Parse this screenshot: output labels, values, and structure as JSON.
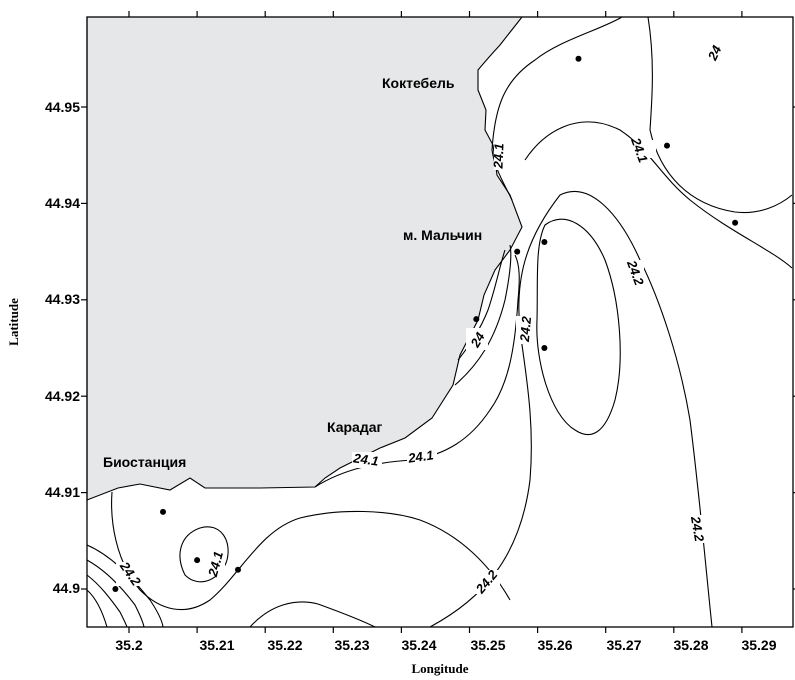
{
  "figure": {
    "xlabel": "Longitude",
    "ylabel": "Latitude",
    "x_ticks": [
      "35.2",
      "35.21",
      "35.22",
      "35.23",
      "35.24",
      "35.25",
      "35.26",
      "35.27",
      "35.28",
      "35.29"
    ],
    "y_ticks": [
      "44.95",
      "44.94",
      "44.93",
      "44.92",
      "44.91",
      "44.9"
    ],
    "place_labels": [
      "Коктебель",
      "м. Мальчин",
      "Карадаг",
      "Биостанция"
    ],
    "contour_labels": [
      "24",
      "24.1",
      "24.1",
      "24",
      "24.2",
      "24.2",
      "24.1",
      "24.1",
      "24.2",
      "24.1",
      "24.2",
      "24.2"
    ],
    "land_color": "#e6e7e8"
  },
  "chart_data": {
    "type": "contour",
    "xlabel": "Longitude",
    "ylabel": "Latitude",
    "xlim": [
      35.193,
      35.292
    ],
    "ylim": [
      44.896,
      44.96
    ],
    "contour_levels": [
      24,
      24.1,
      24.2
    ],
    "stations": [
      {
        "lon": 35.266,
        "lat": 44.955
      },
      {
        "lon": 35.279,
        "lat": 44.946
      },
      {
        "lon": 35.289,
        "lat": 44.938
      },
      {
        "lon": 35.261,
        "lat": 44.936
      },
      {
        "lon": 35.257,
        "lat": 44.935
      },
      {
        "lon": 35.251,
        "lat": 44.928
      },
      {
        "lon": 35.261,
        "lat": 44.925
      },
      {
        "lon": 35.205,
        "lat": 44.908
      },
      {
        "lon": 35.21,
        "lat": 44.903
      },
      {
        "lon": 35.216,
        "lat": 44.902
      },
      {
        "lon": 35.198,
        "lat": 44.9
      }
    ]
  }
}
